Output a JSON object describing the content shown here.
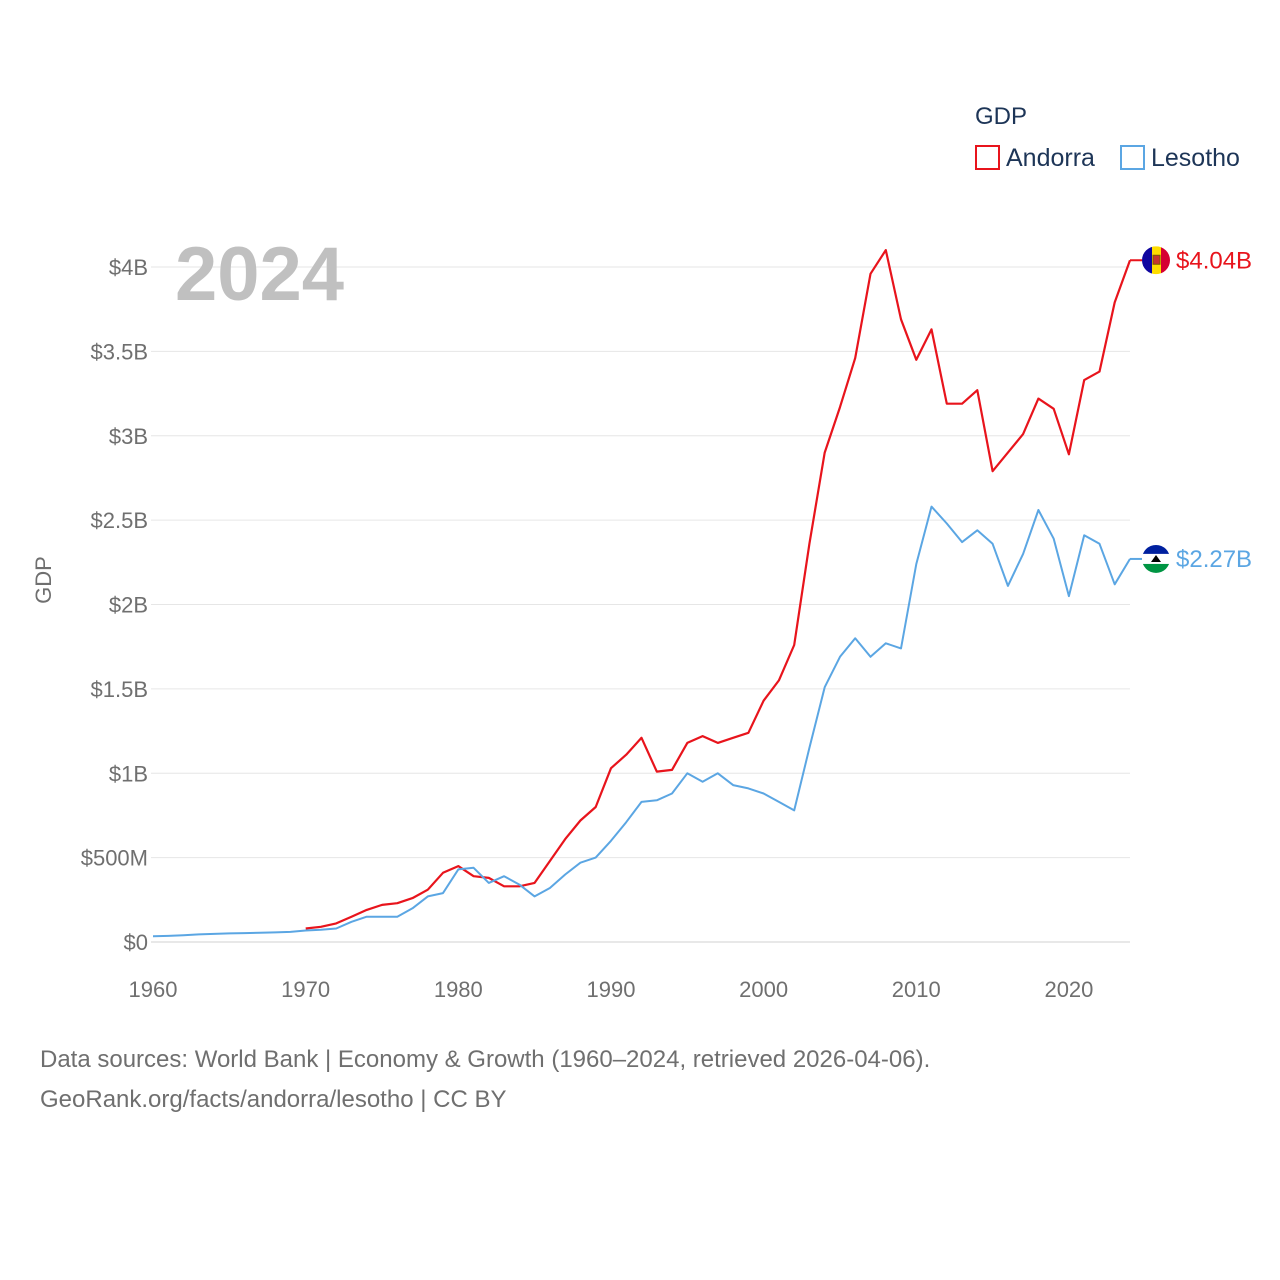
{
  "chart_data": {
    "type": "line",
    "title": "GDP",
    "year_label": "2024",
    "ylabel": "GDP",
    "xlabel": "",
    "xlim": [
      1960,
      2024
    ],
    "ylim": [
      0,
      4.4
    ],
    "x_ticks": [
      1960,
      1970,
      1980,
      1990,
      2000,
      2010,
      2020
    ],
    "y_ticks": [
      {
        "value": 0,
        "label": "$0"
      },
      {
        "value": 0.5,
        "label": "$500M"
      },
      {
        "value": 1,
        "label": "$1B"
      },
      {
        "value": 1.5,
        "label": "$1.5B"
      },
      {
        "value": 2,
        "label": "$2B"
      },
      {
        "value": 2.5,
        "label": "$2.5B"
      },
      {
        "value": 3,
        "label": "$3B"
      },
      {
        "value": 3.5,
        "label": "$3.5B"
      },
      {
        "value": 4,
        "label": "$4B"
      }
    ],
    "legend_title": "GDP",
    "series": [
      {
        "name": "Andorra",
        "color": "#e8141c",
        "end_label": "$4.04B",
        "flag": "andorra-flag-icon",
        "x": [
          1970,
          1971,
          1972,
          1973,
          1974,
          1975,
          1976,
          1977,
          1978,
          1979,
          1980,
          1981,
          1982,
          1983,
          1984,
          1985,
          1986,
          1987,
          1988,
          1989,
          1990,
          1991,
          1992,
          1993,
          1994,
          1995,
          1996,
          1997,
          1998,
          1999,
          2000,
          2001,
          2002,
          2003,
          2004,
          2005,
          2006,
          2007,
          2008,
          2009,
          2010,
          2011,
          2012,
          2013,
          2014,
          2015,
          2016,
          2017,
          2018,
          2019,
          2020,
          2021,
          2022,
          2023,
          2024
        ],
        "values": [
          0.08,
          0.09,
          0.11,
          0.15,
          0.19,
          0.22,
          0.23,
          0.26,
          0.31,
          0.41,
          0.45,
          0.39,
          0.38,
          0.33,
          0.33,
          0.35,
          0.48,
          0.61,
          0.72,
          0.8,
          1.03,
          1.11,
          1.21,
          1.01,
          1.02,
          1.18,
          1.22,
          1.18,
          1.21,
          1.24,
          1.43,
          1.55,
          1.76,
          2.36,
          2.9,
          3.17,
          3.46,
          3.96,
          4.1,
          3.69,
          3.45,
          3.63,
          3.19,
          3.19,
          3.27,
          2.79,
          2.9,
          3.01,
          3.22,
          3.16,
          2.89,
          3.33,
          3.38,
          3.79,
          4.04
        ]
      },
      {
        "name": "Lesotho",
        "color": "#5ba6e3",
        "end_label": "$2.27B",
        "flag": "lesotho-flag-icon",
        "x": [
          1960,
          1961,
          1962,
          1963,
          1964,
          1965,
          1966,
          1967,
          1968,
          1969,
          1970,
          1971,
          1972,
          1973,
          1974,
          1975,
          1976,
          1977,
          1978,
          1979,
          1980,
          1981,
          1982,
          1983,
          1984,
          1985,
          1986,
          1987,
          1988,
          1989,
          1990,
          1991,
          1992,
          1993,
          1994,
          1995,
          1996,
          1997,
          1998,
          1999,
          2000,
          2001,
          2002,
          2003,
          2004,
          2005,
          2006,
          2007,
          2008,
          2009,
          2010,
          2011,
          2012,
          2013,
          2014,
          2015,
          2016,
          2017,
          2018,
          2019,
          2020,
          2021,
          2022,
          2023,
          2024
        ],
        "values": [
          0.034,
          0.036,
          0.04,
          0.045,
          0.048,
          0.051,
          0.053,
          0.055,
          0.057,
          0.06,
          0.068,
          0.073,
          0.08,
          0.12,
          0.15,
          0.15,
          0.15,
          0.2,
          0.27,
          0.29,
          0.43,
          0.44,
          0.35,
          0.39,
          0.34,
          0.27,
          0.32,
          0.4,
          0.47,
          0.5,
          0.6,
          0.71,
          0.83,
          0.84,
          0.88,
          1.0,
          0.95,
          1.0,
          0.93,
          0.91,
          0.88,
          0.83,
          0.78,
          1.15,
          1.51,
          1.69,
          1.8,
          1.69,
          1.77,
          1.74,
          2.24,
          2.58,
          2.48,
          2.37,
          2.44,
          2.36,
          2.11,
          2.3,
          2.56,
          2.39,
          2.05,
          2.41,
          2.36,
          2.12,
          2.27
        ]
      }
    ]
  },
  "footer": {
    "line1": "Data sources: World Bank | Economy & Growth (1960–2024, retrieved 2026-04-06).",
    "line2": "GeoRank.org/facts/andorra/lesotho | CC BY"
  }
}
